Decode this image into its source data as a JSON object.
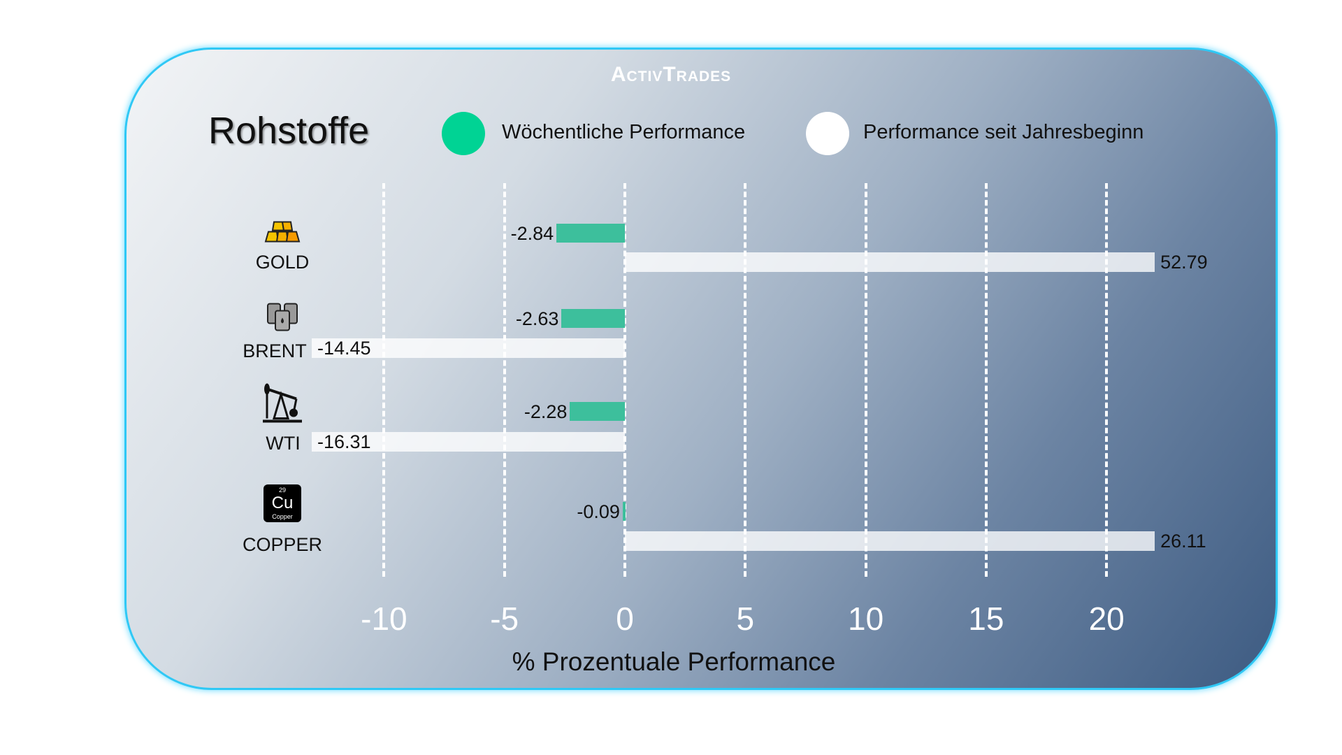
{
  "logo_text": "ActivTrades",
  "chart_data": {
    "type": "bar",
    "orientation": "horizontal",
    "title": "Rohstoffe",
    "xlabel": "% Prozentuale Performance",
    "categories": [
      "GOLD",
      "BRENT",
      "WTI",
      "COPPER"
    ],
    "category_icons": [
      "gold-bars-icon",
      "oil-barrels-icon",
      "oil-pumpjack-icon",
      "copper-element-icon"
    ],
    "copper_icon_text": {
      "number": "29",
      "symbol": "Cu",
      "name": "Copper"
    },
    "series": [
      {
        "name": "Wöchentliche Performance",
        "color": "#3dbf9c",
        "values": [
          -2.84,
          -2.63,
          -2.28,
          -0.09
        ]
      },
      {
        "name": "Performance seit Jahresbeginn",
        "color": "#ffffff",
        "values": [
          52.79,
          -14.45,
          -16.31,
          26.11
        ]
      }
    ],
    "legend_colors": [
      "#00d394",
      "#ffffff"
    ],
    "xticks": [
      "-10",
      "-5",
      "0",
      "5",
      "10",
      "15",
      "20"
    ],
    "xlim": [
      -13,
      22
    ],
    "grid": "vertical dashed",
    "legend_position": "top"
  }
}
